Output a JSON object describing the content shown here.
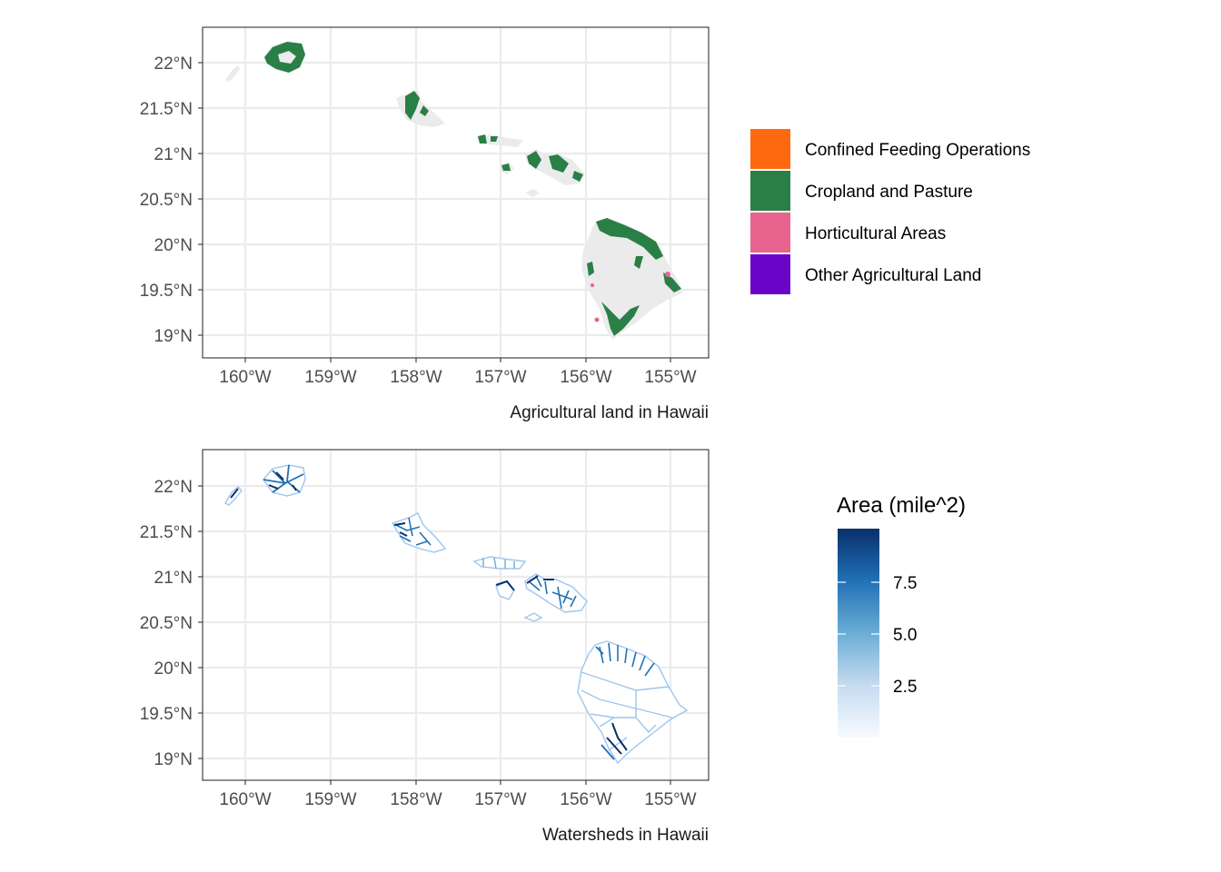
{
  "maps": [
    {
      "caption": "Agricultural land in Hawaii",
      "lat_ticks": [
        "22°N",
        "21.5°N",
        "21°N",
        "20.5°N",
        "20°N",
        "19.5°N",
        "19°N"
      ],
      "lon_ticks": [
        "160°W",
        "159°W",
        "158°W",
        "157°W",
        "156°W",
        "155°W"
      ],
      "legend": {
        "title": "",
        "items": [
          {
            "label": "Confined Feeding Operations",
            "color": "#ff6a10"
          },
          {
            "label": "Cropland and Pasture",
            "color": "#2a7f47"
          },
          {
            "label": "Horticultural Areas",
            "color": "#e8638e"
          },
          {
            "label": "Other Agricultural Land",
            "color": "#6a05c8"
          }
        ]
      }
    },
    {
      "caption": "Watersheds in Hawaii",
      "lat_ticks": [
        "22°N",
        "21.5°N",
        "21°N",
        "20.5°N",
        "20°N",
        "19.5°N",
        "19°N"
      ],
      "lon_ticks": [
        "160°W",
        "159°W",
        "158°W",
        "157°W",
        "156°W",
        "155°W"
      ],
      "legend": {
        "title": "Area (mile^2)",
        "ticks": [
          "7.5",
          "5.0",
          "2.5"
        ],
        "colors": [
          "#f7fbff",
          "#c6dbef",
          "#6baed6",
          "#2171b5",
          "#08306b"
        ]
      }
    }
  ]
}
